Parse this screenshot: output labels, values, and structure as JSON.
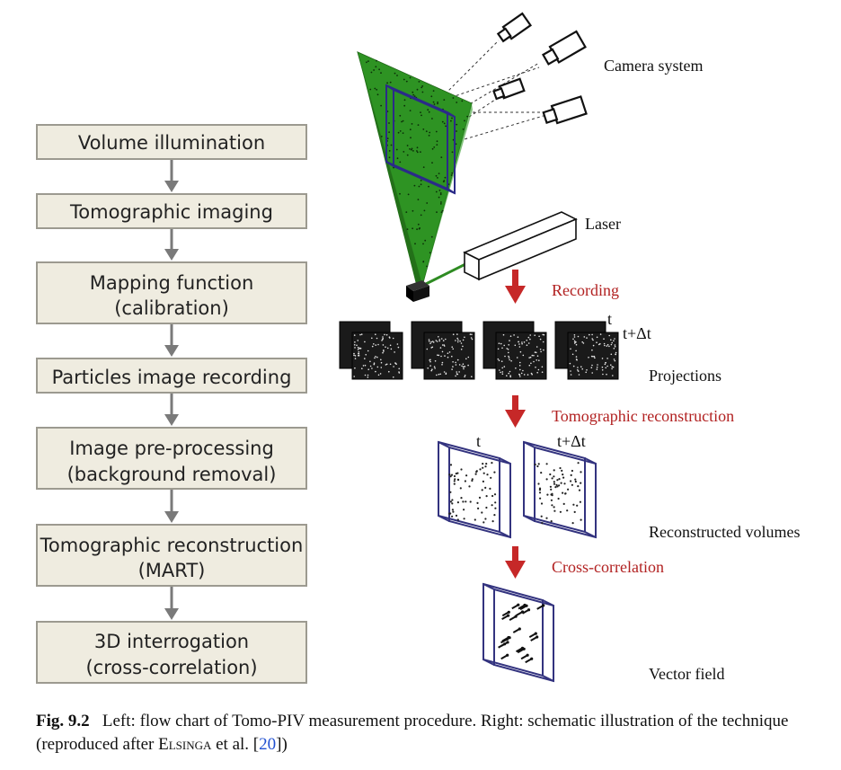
{
  "flowchart": {
    "steps": [
      {
        "line1": "Volume illumination",
        "line2": ""
      },
      {
        "line1": "Tomographic imaging",
        "line2": ""
      },
      {
        "line1": "Mapping function",
        "line2": "(calibration)"
      },
      {
        "line1": "Particles image recording",
        "line2": ""
      },
      {
        "line1": "Image pre-processing",
        "line2": "(background removal)"
      },
      {
        "line1": "Tomographic reconstruction",
        "line2": "(MART)"
      },
      {
        "line1": "3D interrogation",
        "line2": "(cross-correlation)"
      }
    ]
  },
  "schematic": {
    "camera_label": "Camera system",
    "laser_label": "Laser",
    "recording_label": "Recording",
    "t_label": "t",
    "t_dt_label": "t+Δt",
    "projections_label": "Projections",
    "reconstruction_label": "Tomographic reconstruction",
    "volume_t_label": "t",
    "volume_tdt_label": "t+Δt",
    "reconstructed_label": "Reconstructed volumes",
    "crosscorr_label": "Cross-correlation",
    "vector_label": "Vector field",
    "colors": {
      "sheet": "#2e8b22",
      "red": "#c62828",
      "volume": "#33337f",
      "box": "#efece0"
    }
  },
  "caption": {
    "fig_label": "Fig. 9.2",
    "text_1": "Left: flow chart of Tomo-PIV measurement procedure. Right: schematic illustration of the technique (reproduced after ",
    "author": "Elsinga",
    "text_2": " et al. [",
    "ref": "20",
    "text_3": "])"
  }
}
